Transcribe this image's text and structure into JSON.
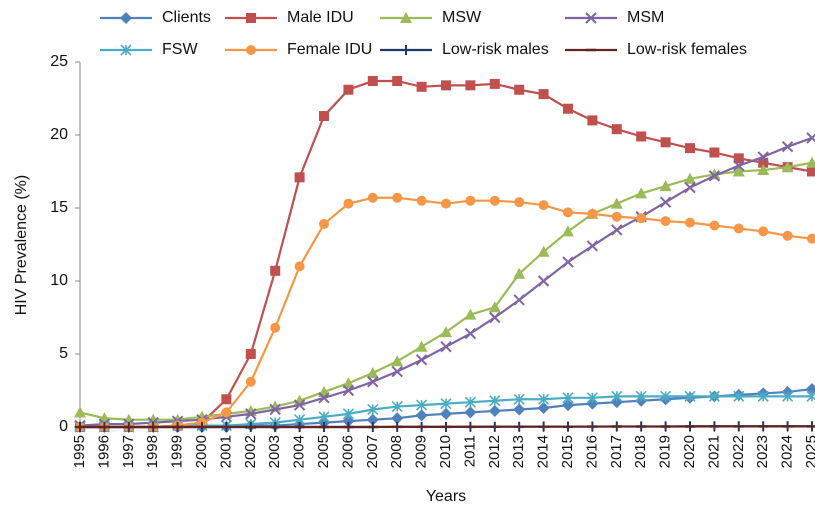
{
  "chart_data": {
    "type": "line",
    "ylabel": "HIV Prevalence (%)",
    "xlabel": "Years",
    "categories": [
      "1995",
      "1996",
      "1997",
      "1998",
      "1999",
      "2000",
      "2001",
      "2002",
      "2003",
      "2004",
      "2005",
      "2006",
      "2007",
      "2008",
      "2009",
      "2010",
      "2011",
      "2012",
      "2013",
      "2014",
      "2015",
      "2016",
      "2017",
      "2018",
      "2019",
      "2020",
      "2021",
      "2022",
      "2023",
      "2024",
      "2025"
    ],
    "ylim": [
      0,
      25
    ],
    "yticks": [
      0,
      5,
      10,
      15,
      20,
      25
    ],
    "series": [
      {
        "name": "Clients",
        "color": "#4f81bd",
        "marker": "diamond",
        "values": [
          0,
          0,
          0,
          0,
          0,
          0,
          0,
          0.1,
          0.1,
          0.2,
          0.3,
          0.4,
          0.5,
          0.6,
          0.8,
          0.9,
          1.0,
          1.1,
          1.2,
          1.3,
          1.5,
          1.6,
          1.7,
          1.8,
          1.9,
          2.0,
          2.1,
          2.2,
          2.3,
          2.4,
          2.6
        ]
      },
      {
        "name": "Male IDU",
        "color": "#c0504d",
        "marker": "square",
        "values": [
          0,
          0,
          0,
          0,
          0.1,
          0.3,
          1.9,
          5.0,
          10.7,
          17.1,
          21.3,
          23.1,
          23.7,
          23.7,
          23.3,
          23.4,
          23.4,
          23.5,
          23.1,
          22.8,
          21.8,
          21.0,
          20.4,
          19.9,
          19.5,
          19.1,
          18.8,
          18.4,
          18.1,
          17.8,
          17.5
        ]
      },
      {
        "name": "MSW",
        "color": "#9bbb59",
        "marker": "triangle",
        "values": [
          1.0,
          0.6,
          0.5,
          0.5,
          0.5,
          0.7,
          0.9,
          1.1,
          1.4,
          1.8,
          2.4,
          3.0,
          3.7,
          4.5,
          5.5,
          6.5,
          7.7,
          8.2,
          10.5,
          12.0,
          13.4,
          14.6,
          15.3,
          16.0,
          16.5,
          17.0,
          17.3,
          17.5,
          17.6,
          17.8,
          18.1
        ]
      },
      {
        "name": "MSM",
        "color": "#8064a2",
        "marker": "x",
        "values": [
          0.1,
          0.2,
          0.2,
          0.3,
          0.4,
          0.5,
          0.7,
          0.9,
          1.2,
          1.5,
          2.0,
          2.5,
          3.1,
          3.8,
          4.6,
          5.5,
          6.4,
          7.5,
          8.7,
          10.0,
          11.3,
          12.4,
          13.5,
          14.4,
          15.4,
          16.4,
          17.2,
          17.9,
          18.5,
          19.2,
          19.8
        ]
      },
      {
        "name": "FSW",
        "color": "#4bacc6",
        "marker": "star",
        "values": [
          0,
          0,
          0,
          0,
          0.1,
          0.1,
          0.1,
          0.2,
          0.3,
          0.5,
          0.7,
          0.9,
          1.2,
          1.4,
          1.5,
          1.6,
          1.7,
          1.8,
          1.9,
          1.9,
          2.0,
          2.0,
          2.1,
          2.1,
          2.1,
          2.1,
          2.1,
          2.1,
          2.1,
          2.1,
          2.1
        ]
      },
      {
        "name": "Female IDU",
        "color": "#f79646",
        "marker": "circle",
        "values": [
          0,
          0,
          0,
          0,
          0.1,
          0.3,
          1.0,
          3.1,
          6.8,
          11.0,
          13.9,
          15.3,
          15.7,
          15.7,
          15.5,
          15.3,
          15.5,
          15.5,
          15.4,
          15.2,
          14.7,
          14.6,
          14.4,
          14.3,
          14.1,
          14.0,
          13.8,
          13.6,
          13.4,
          13.1,
          12.9
        ]
      },
      {
        "name": "Low-risk males",
        "color": "#1f3864",
        "marker": "plus",
        "values": [
          0,
          0,
          0,
          0,
          0,
          0,
          0,
          0,
          0,
          0,
          0,
          0,
          0,
          0.01,
          0.01,
          0.01,
          0.02,
          0.02,
          0.02,
          0.03,
          0.03,
          0.03,
          0.04,
          0.04,
          0.04,
          0.05,
          0.05,
          0.05,
          0.05,
          0.05,
          0.05
        ]
      },
      {
        "name": "Low-risk females",
        "color": "#632523",
        "marker": "dash",
        "values": [
          0,
          0,
          0,
          0,
          0,
          0,
          0,
          0,
          0,
          0,
          0,
          0,
          0,
          0.01,
          0.01,
          0.01,
          0.01,
          0.02,
          0.02,
          0.02,
          0.02,
          0.03,
          0.03,
          0.03,
          0.03,
          0.03,
          0.04,
          0.04,
          0.04,
          0.04,
          0.04
        ]
      }
    ]
  }
}
